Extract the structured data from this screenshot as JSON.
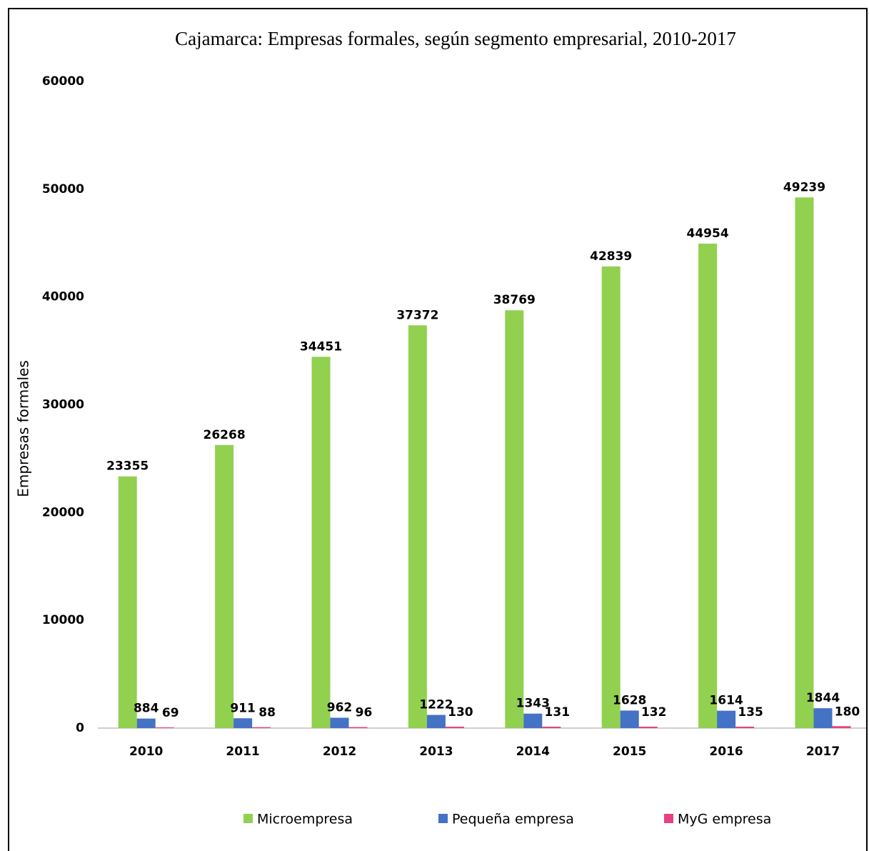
{
  "chart_data": {
    "type": "bar",
    "title": "Cajamarca: Empresas formales, según segmento empresarial, 2010-2017",
    "y_label": "Empresas formales",
    "categories": [
      "2010",
      "2011",
      "2012",
      "2013",
      "2014",
      "2015",
      "2016",
      "2017"
    ],
    "series": [
      {
        "name": "Microempresa",
        "color": "#92d050",
        "values": [
          23355,
          26268,
          34451,
          37372,
          38769,
          42839,
          44954,
          49239
        ]
      },
      {
        "name": "Pequeña empresa",
        "color": "#4472c4",
        "values": [
          884,
          911,
          962,
          1222,
          1343,
          1628,
          1614,
          1844
        ]
      },
      {
        "name": "MyG empresa",
        "color": "#e8417f",
        "values": [
          69,
          88,
          96,
          130,
          131,
          132,
          135,
          180
        ]
      }
    ],
    "ylim": [
      0,
      60000
    ],
    "yticks": [
      0,
      10000,
      20000,
      30000,
      40000,
      50000,
      60000
    ],
    "grid": false,
    "legend": "bottom"
  }
}
